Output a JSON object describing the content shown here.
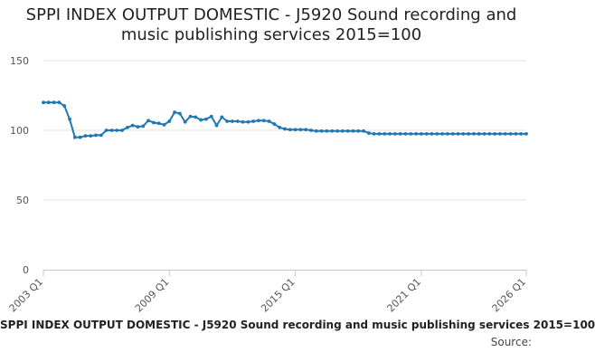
{
  "chart_data": {
    "type": "line",
    "title": "SPPI INDEX OUTPUT DOMESTIC - J5920 Sound recording and music publishing services 2015=100",
    "xlabel": "",
    "ylabel": "",
    "ylim": [
      0,
      150
    ],
    "yticks": [
      0,
      50,
      100,
      150
    ],
    "x_start": "2003 Q1",
    "x_end": "2026 Q1",
    "xticks": [
      "2003 Q1",
      "2009 Q1",
      "2015 Q1",
      "2021 Q1",
      "2026 Q1"
    ],
    "grid": "horizontal",
    "line_color": "#1f78b4",
    "series": [
      {
        "values": [
          120,
          120,
          120,
          120,
          117.5,
          108,
          95,
          95,
          96,
          96,
          96.5,
          96.5,
          100,
          100,
          100,
          100,
          102,
          103.5,
          102.5,
          103,
          107,
          105.5,
          105,
          104,
          106.5,
          113,
          112,
          106,
          110,
          109.5,
          107.5,
          108,
          110,
          103.5,
          109.5,
          106.5,
          106.5,
          106.5,
          106,
          106,
          106.5,
          107,
          107,
          106.5,
          104.5,
          102,
          101,
          100.5,
          100.5,
          100.5,
          100.5,
          100,
          99.5,
          99.5,
          99.5,
          99.5,
          99.5,
          99.5,
          99.5,
          99.5,
          99.5,
          99.5,
          98,
          97.5,
          97.5,
          97.5,
          97.5,
          97.5,
          97.5,
          97.5,
          97.5,
          97.5,
          97.5,
          97.5,
          97.5,
          97.5,
          97.5,
          97.5,
          97.5,
          97.5,
          97.5,
          97.5,
          97.5,
          97.5,
          97.5,
          97.5,
          97.5,
          97.5,
          97.5,
          97.5,
          97.5,
          97.5,
          97.5
        ]
      }
    ]
  },
  "caption": "SPPI INDEX OUTPUT DOMESTIC - J5920 Sound recording and music publishing services 2015=100",
  "source_label": "Source:"
}
